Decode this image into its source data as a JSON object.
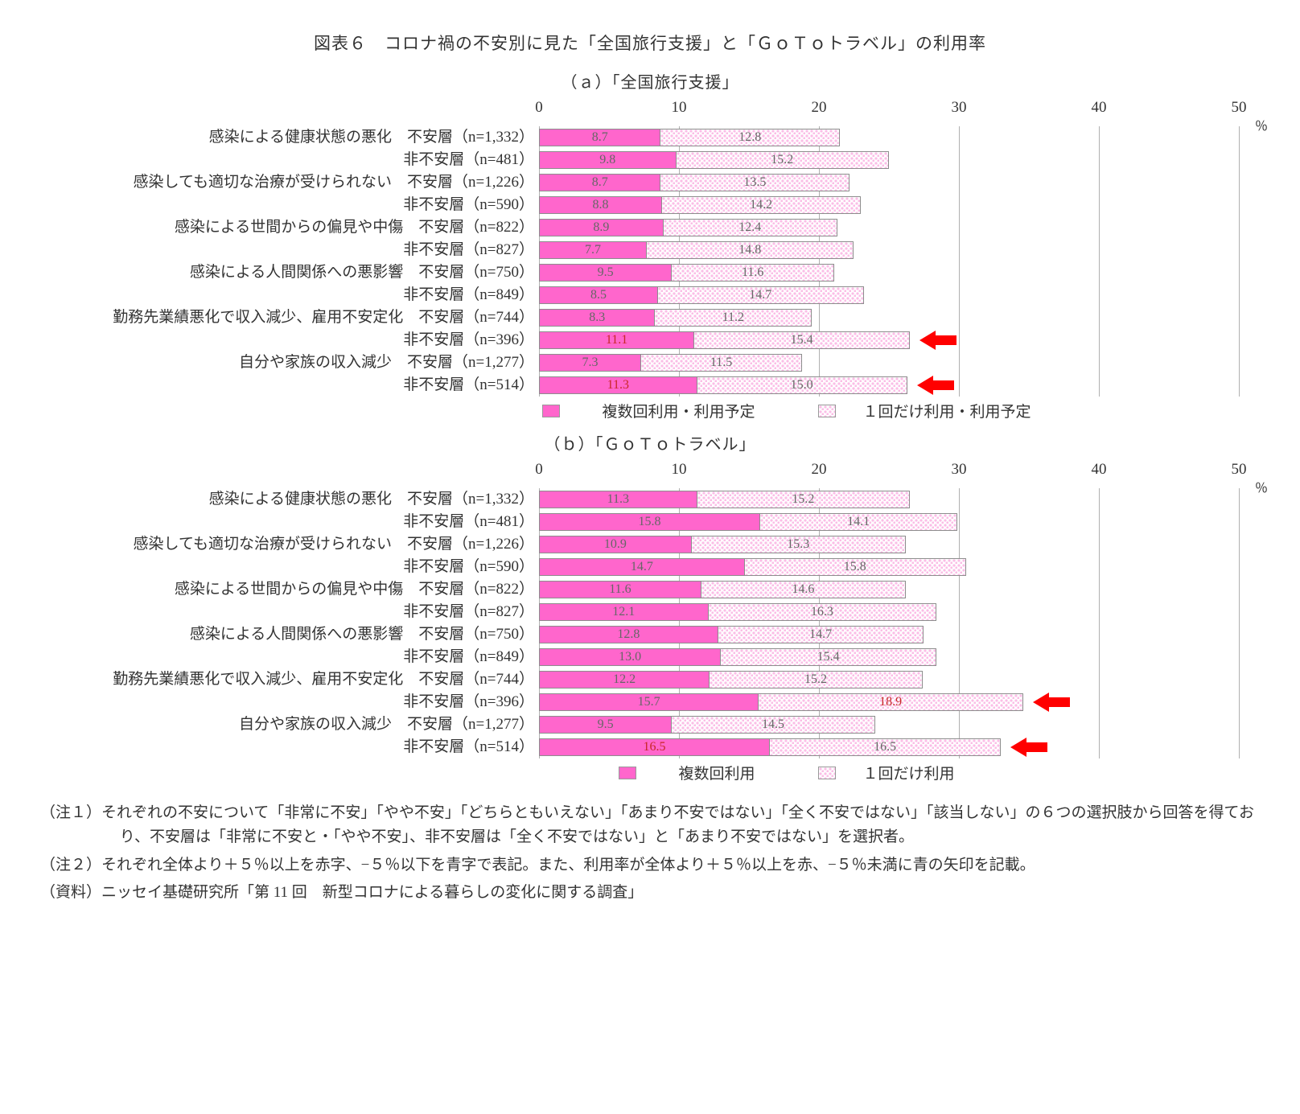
{
  "title": "図表６　コロナ禍の不安別に見た「全国旅行支援」と「ＧｏＴｏトラベル」の利用率",
  "axis": {
    "min": 0,
    "max": 50,
    "ticks": [
      0,
      10,
      20,
      30,
      40,
      50
    ],
    "unit": "％"
  },
  "colors": {
    "solid": "#ff66cc",
    "pattern_fg": "#fbbde6",
    "pattern_bg": "#ffffff",
    "bar_border": "#8d8d8d",
    "grid": "#b0b0b0",
    "text": "#5b5b5b",
    "arrow": "#ff0000"
  },
  "row_labels": [
    "感染による健康状態の悪化　不安層（n=1,332）",
    "非不安層（n=481）",
    "感染しても適切な治療が受けられない　不安層（n=1,226）",
    "非不安層（n=590）",
    "感染による世間からの偏見や中傷　不安層（n=822）",
    "非不安層（n=827）",
    "感染による人間関係への悪影響　不安層（n=750）",
    "非不安層（n=849）",
    "勤務先業績悪化で収入減少、雇用不安定化　不安層（n=744）",
    "非不安層（n=396）",
    "自分や家族の収入減少　不安層（n=1,277）",
    "非不安層（n=514）"
  ],
  "panels": [
    {
      "key": "a",
      "subtitle": "（ａ）「全国旅行支援」",
      "legend": [
        "複数回利用・利用予定",
        "１回だけ利用・利用予定"
      ],
      "rows": [
        {
          "v1": 8.7,
          "v2": 12.8
        },
        {
          "v1": 9.8,
          "v2": 15.2
        },
        {
          "v1": 8.7,
          "v2": 13.5
        },
        {
          "v1": 8.8,
          "v2": 14.2
        },
        {
          "v1": 8.9,
          "v2": 12.4
        },
        {
          "v1": 7.7,
          "v2": 14.8
        },
        {
          "v1": 9.5,
          "v2": 11.6
        },
        {
          "v1": 8.5,
          "v2": 14.7
        },
        {
          "v1": 8.3,
          "v2": 11.2
        },
        {
          "v1": 11.1,
          "v2": 15.4,
          "arrow": true,
          "red1": true
        },
        {
          "v1": 7.3,
          "v2": 11.5
        },
        {
          "v1": 11.3,
          "v2": 15.0,
          "arrow": true,
          "red1": true
        }
      ]
    },
    {
      "key": "b",
      "subtitle": "（ｂ）「ＧｏＴｏトラベル」",
      "legend": [
        "複数回利用",
        "１回だけ利用"
      ],
      "rows": [
        {
          "v1": 11.3,
          "v2": 15.2
        },
        {
          "v1": 15.8,
          "v2": 14.1
        },
        {
          "v1": 10.9,
          "v2": 15.3
        },
        {
          "v1": 14.7,
          "v2": 15.8
        },
        {
          "v1": 11.6,
          "v2": 14.6
        },
        {
          "v1": 12.1,
          "v2": 16.3
        },
        {
          "v1": 12.8,
          "v2": 14.7
        },
        {
          "v1": 13.0,
          "v2": 15.4
        },
        {
          "v1": 12.2,
          "v2": 15.2
        },
        {
          "v1": 15.7,
          "v2": 18.9,
          "arrow": true,
          "red2": true
        },
        {
          "v1": 9.5,
          "v2": 14.5
        },
        {
          "v1": 16.5,
          "v2": 16.5,
          "arrow": true,
          "red1": true
        }
      ]
    }
  ],
  "notes": [
    "（注１）それぞれの不安について「非常に不安」「やや不安」「どちらともいえない」「あまり不安ではない」「全く不安ではない」「該当しない」の６つの選択肢から回答を得ており、不安層は「非常に不安と・「やや不安」、非不安層は「全く不安ではない」と「あまり不安ではない」を選択者。",
    "（注２）それぞれ全体より＋５％以上を赤字、−５％以下を青字で表記。また、利用率が全体より＋５％以上を赤、−５％未満に青の矢印を記載。",
    "（資料）ニッセイ基礎研究所「第 11 回　新型コロナによる暮らしの変化に関する調査」"
  ]
}
